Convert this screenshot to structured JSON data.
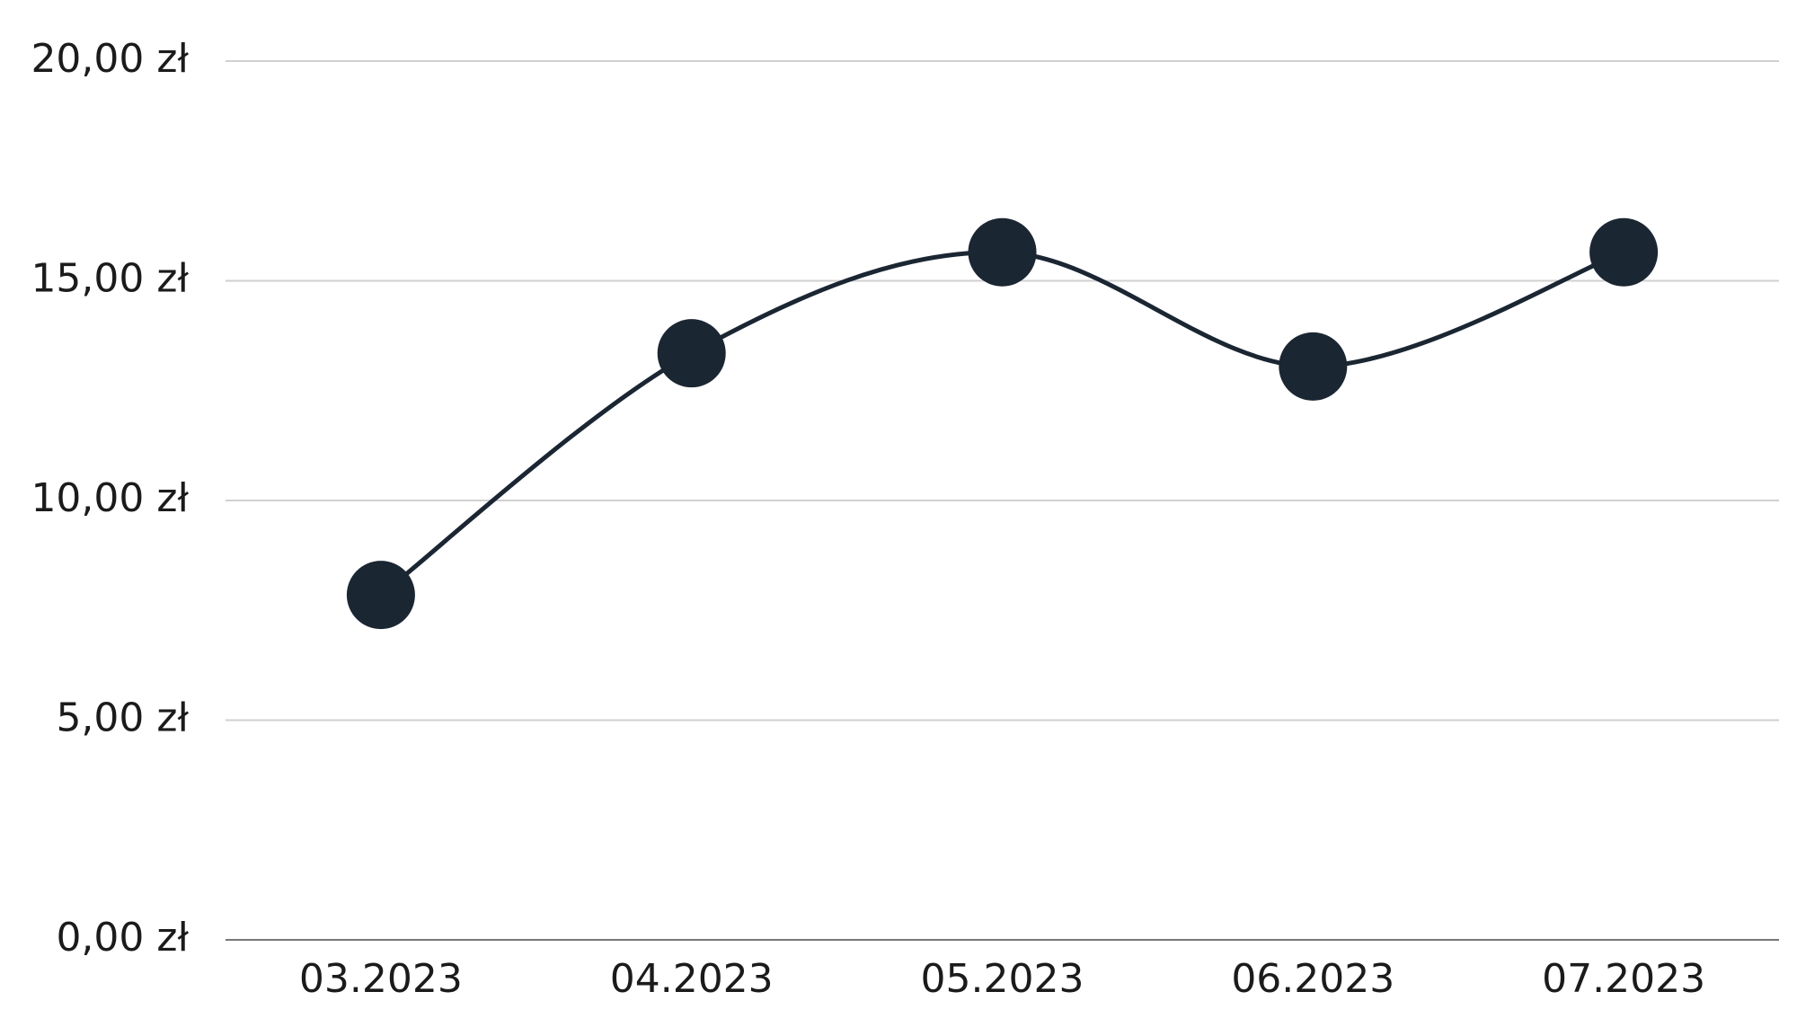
{
  "chart_data": {
    "type": "line",
    "categories": [
      "03.2023",
      "04.2023",
      "05.2023",
      "06.2023",
      "07.2023"
    ],
    "series": [
      {
        "color": "#1b2633",
        "values": [
          7.85,
          13.35,
          15.65,
          13.05,
          15.65
        ]
      }
    ],
    "ylim": [
      0,
      20
    ],
    "yticks": [
      {
        "value": 0,
        "label": "0,00 zł"
      },
      {
        "value": 5,
        "label": "5,00 zł"
      },
      {
        "value": 10,
        "label": "10,00 zł"
      },
      {
        "value": 15,
        "label": "15,00 zł"
      },
      {
        "value": 20,
        "label": "20,00 zł"
      }
    ],
    "grid": true,
    "smooth": true
  }
}
